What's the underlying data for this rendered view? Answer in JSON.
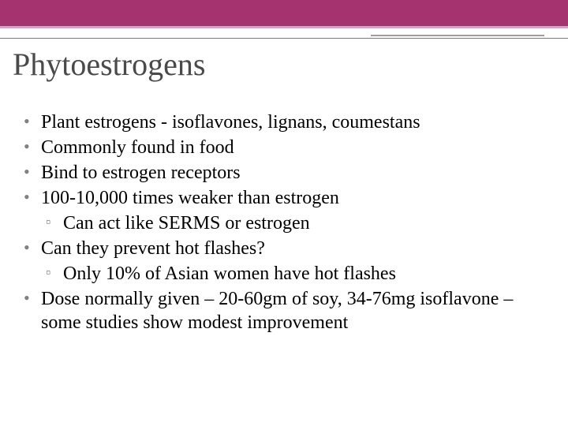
{
  "slide": {
    "title": "Phytoestrogens",
    "bullets": [
      {
        "level": 0,
        "text": "Plant estrogens - isoflavones, lignans, coumestans"
      },
      {
        "level": 0,
        "text": "Commonly found in food"
      },
      {
        "level": 0,
        "text": "Bind to estrogen receptors"
      },
      {
        "level": 0,
        "text": "100-10,000 times weaker than estrogen"
      },
      {
        "level": 1,
        "text": "Can act like SERMS or estrogen"
      },
      {
        "level": 0,
        "text": "Can they prevent hot flashes?"
      },
      {
        "level": 1,
        "text": "Only 10% of Asian women have hot flashes"
      },
      {
        "level": 0,
        "text": "Dose normally given – 20-60gm of soy, 34-76mg isoflavone – some studies show modest improvement"
      }
    ]
  },
  "style": {
    "top_bar_color": "#a5336f",
    "top_bar_accent": "#d4a5c9",
    "title_color": "#4a4a4a",
    "title_fontsize": 40,
    "body_fontsize": 24,
    "bullet_color": "#808080",
    "background": "#ffffff",
    "text_color": "#000000",
    "underline_color": "#7a7a7a"
  }
}
